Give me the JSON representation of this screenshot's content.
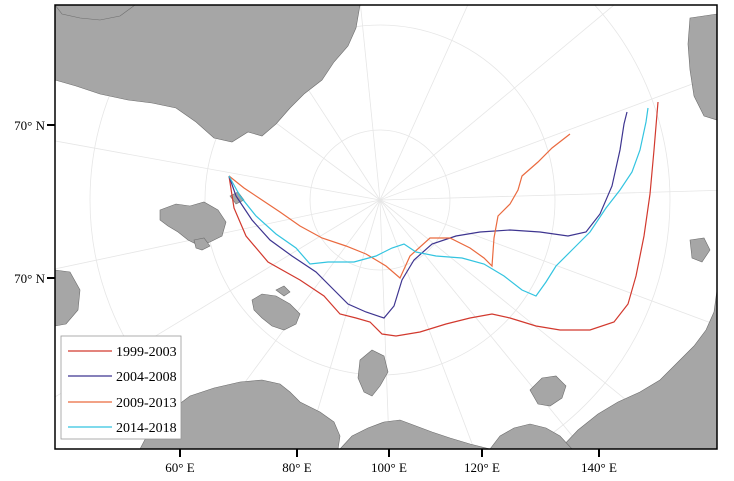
{
  "map": {
    "lat_labels": [
      "70° N",
      "70° N"
    ],
    "lon_labels": [
      "60° E",
      "80° E",
      "100° E",
      "120° E",
      "140° E"
    ],
    "land_color": "#a6a6a6",
    "graticule_color": "#e6e6e6"
  },
  "legend": {
    "placement": "bottom-left",
    "entries": [
      {
        "label": "1999-2003",
        "color": "#d2392e"
      },
      {
        "label": "2004-2008",
        "color": "#3e3590"
      },
      {
        "label": "2009-2013",
        "color": "#ea6a3f"
      },
      {
        "label": "2014-2018",
        "color": "#33c4e0"
      }
    ]
  }
}
